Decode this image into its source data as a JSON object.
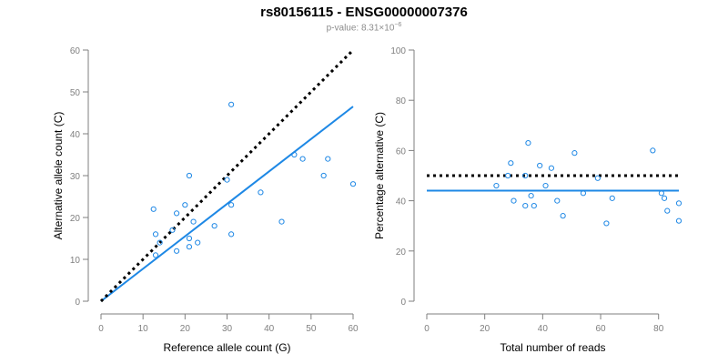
{
  "header": {
    "title": "rs80156115 - ENSG00000007376",
    "pvalue_prefix": "p-value: 8.31×10",
    "pvalue_exponent": "−6"
  },
  "colors": {
    "points": "#1f88e5",
    "fit_line": "#1e88e5",
    "reference_line": "#000000",
    "axes": "#7f7f7f"
  },
  "chart_data": [
    {
      "type": "scatter",
      "xlabel": "Reference allele count (G)",
      "ylabel": "Alternative allele count (C)",
      "xlim": [
        0,
        60
      ],
      "ylim": [
        0,
        60
      ],
      "xticks": [
        0,
        10,
        20,
        30,
        40,
        50,
        60
      ],
      "yticks": [
        0,
        10,
        20,
        30,
        40,
        50,
        60
      ],
      "grid": false,
      "points": [
        {
          "x": 12.5,
          "y": 22
        },
        {
          "x": 13,
          "y": 16
        },
        {
          "x": 13,
          "y": 11
        },
        {
          "x": 14,
          "y": 14
        },
        {
          "x": 17,
          "y": 17
        },
        {
          "x": 18,
          "y": 21
        },
        {
          "x": 18,
          "y": 12
        },
        {
          "x": 20,
          "y": 23
        },
        {
          "x": 21,
          "y": 30
        },
        {
          "x": 21,
          "y": 15
        },
        {
          "x": 21,
          "y": 13
        },
        {
          "x": 22,
          "y": 19
        },
        {
          "x": 23,
          "y": 14
        },
        {
          "x": 27,
          "y": 18
        },
        {
          "x": 30,
          "y": 29
        },
        {
          "x": 31,
          "y": 47
        },
        {
          "x": 31,
          "y": 23
        },
        {
          "x": 31,
          "y": 16
        },
        {
          "x": 38,
          "y": 26
        },
        {
          "x": 43,
          "y": 19
        },
        {
          "x": 46,
          "y": 35
        },
        {
          "x": 48,
          "y": 34
        },
        {
          "x": 53,
          "y": 30
        },
        {
          "x": 54,
          "y": 34
        },
        {
          "x": 60,
          "y": 28
        }
      ],
      "lines": [
        {
          "role": "fit",
          "x": [
            0,
            60
          ],
          "y": [
            0,
            46.5
          ]
        },
        {
          "role": "reference",
          "x": [
            0,
            60
          ],
          "y": [
            0,
            60
          ]
        }
      ]
    },
    {
      "type": "scatter",
      "xlabel": "Total number of reads",
      "ylabel": "Percentage alternative (C)",
      "xlim": [
        0,
        87
      ],
      "ylim": [
        0,
        100
      ],
      "xticks": [
        0,
        20,
        40,
        60,
        80
      ],
      "yticks": [
        0,
        20,
        40,
        60,
        80,
        100
      ],
      "grid": false,
      "points": [
        {
          "x": 24,
          "y": 46
        },
        {
          "x": 28,
          "y": 50
        },
        {
          "x": 29,
          "y": 55
        },
        {
          "x": 30,
          "y": 40
        },
        {
          "x": 34,
          "y": 38
        },
        {
          "x": 34,
          "y": 50
        },
        {
          "x": 35,
          "y": 63
        },
        {
          "x": 36,
          "y": 42
        },
        {
          "x": 37,
          "y": 38
        },
        {
          "x": 39,
          "y": 54
        },
        {
          "x": 41,
          "y": 46
        },
        {
          "x": 43,
          "y": 53
        },
        {
          "x": 45,
          "y": 40
        },
        {
          "x": 47,
          "y": 34
        },
        {
          "x": 51,
          "y": 59
        },
        {
          "x": 54,
          "y": 43
        },
        {
          "x": 59,
          "y": 49
        },
        {
          "x": 62,
          "y": 31
        },
        {
          "x": 64,
          "y": 41
        },
        {
          "x": 78,
          "y": 60
        },
        {
          "x": 81,
          "y": 43
        },
        {
          "x": 82,
          "y": 41
        },
        {
          "x": 83,
          "y": 36
        },
        {
          "x": 87,
          "y": 39
        },
        {
          "x": 87,
          "y": 32
        }
      ],
      "lines": [
        {
          "role": "fit",
          "x": [
            0,
            87
          ],
          "y": [
            44,
            44
          ]
        },
        {
          "role": "reference",
          "x": [
            0,
            87
          ],
          "y": [
            50,
            50
          ]
        }
      ]
    }
  ]
}
